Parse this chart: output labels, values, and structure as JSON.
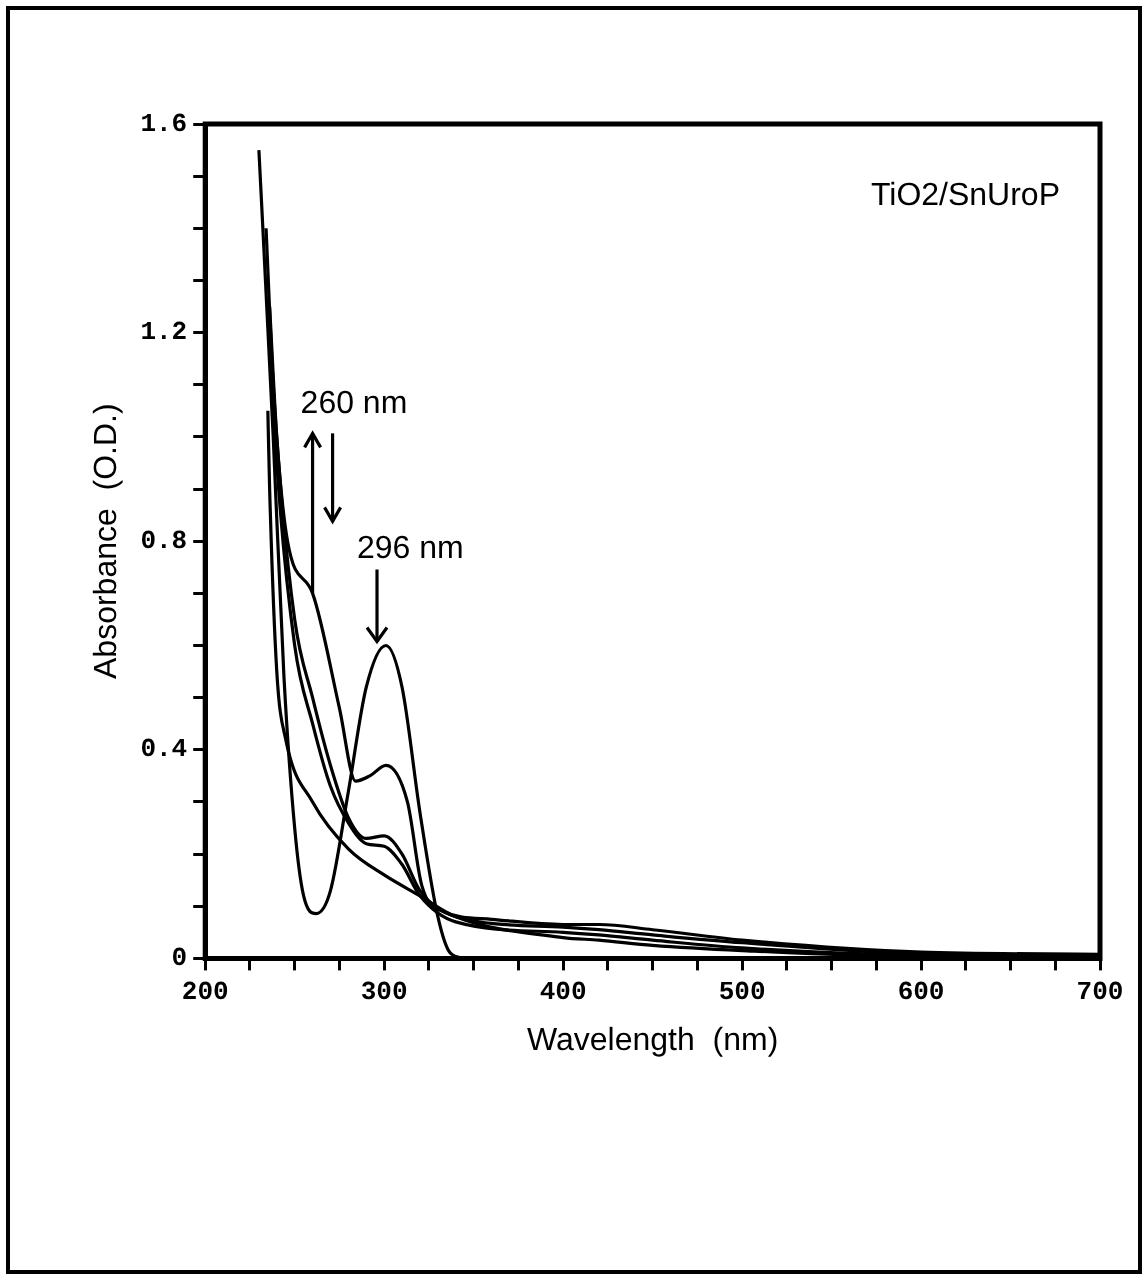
{
  "chart_data": {
    "type": "line",
    "xlabel": "Wavelength  (nm)",
    "ylabel": "Absorbance  (O.D.)",
    "xlim": [
      200,
      700
    ],
    "xticks": [
      200,
      {
        "value": 225,
        "label": null
      },
      {
        "value": 250,
        "label": null
      },
      {
        "value": 275,
        "label": null
      },
      300,
      {
        "value": 325,
        "label": null
      },
      {
        "value": 350,
        "label": null
      },
      {
        "value": 375,
        "label": null
      },
      400,
      {
        "value": 425,
        "label": null
      },
      {
        "value": 450,
        "label": null
      },
      {
        "value": 475,
        "label": null
      },
      500,
      {
        "value": 525,
        "label": null
      },
      {
        "value": 550,
        "label": null
      },
      {
        "value": 575,
        "label": null
      },
      600,
      {
        "value": 625,
        "label": null
      },
      {
        "value": 650,
        "label": null
      },
      {
        "value": 675,
        "label": null
      },
      700
    ],
    "ylim": [
      0,
      1.6
    ],
    "yticks": [
      0,
      {
        "value": 0.1,
        "label": null
      },
      {
        "value": 0.2,
        "label": null
      },
      {
        "value": 0.3,
        "label": null
      },
      {
        "value": 0.4,
        "label": "0.4"
      },
      {
        "value": 0.5,
        "label": null
      },
      {
        "value": 0.6,
        "label": null
      },
      {
        "value": 0.7,
        "label": null
      },
      {
        "value": 0.8,
        "label": "0.8"
      },
      {
        "value": 0.9,
        "label": null
      },
      {
        "value": 1.0,
        "label": null
      },
      {
        "value": 1.1,
        "label": null
      },
      {
        "value": 1.2,
        "label": "1.2"
      },
      {
        "value": 1.3,
        "label": null
      },
      {
        "value": 1.4,
        "label": null
      },
      {
        "value": 1.5,
        "label": null
      },
      {
        "value": 1.6,
        "label": "1.6"
      }
    ],
    "grid": false,
    "legend": false,
    "marker": "none",
    "line_style": "solid",
    "annotations": [
      "TiO2/SnUroP",
      {
        "text": "260 nm",
        "x": 260,
        "y": 0.7
      },
      {
        "text": "296 nm",
        "x": 296,
        "y": 0.6
      }
    ],
    "series": [
      {
        "color": "#000000",
        "x": [
          230,
          238,
          244,
          250,
          255,
          262,
          270,
          280,
          290,
          301,
          310,
          320,
          330,
          337,
          345
        ],
        "values": [
          1.55,
          1.0,
          0.54,
          0.25,
          0.12,
          0.086,
          0.13,
          0.32,
          0.52,
          0.6,
          0.52,
          0.28,
          0.08,
          0.01,
          0
        ]
      },
      {
        "color": "#000000",
        "x": [
          234,
          238,
          246,
          260,
          275,
          284,
          292,
          301,
          313,
          321,
          333,
          360,
          400,
          420,
          450,
          500,
          600,
          700
        ],
        "values": [
          1.4,
          1.1,
          0.8,
          0.7,
          0.48,
          0.34,
          0.35,
          0.37,
          0.3,
          0.14,
          0.09,
          0.075,
          0.065,
          0.065,
          0.055,
          0.035,
          0.012,
          0.008
        ]
      },
      {
        "color": "#000000",
        "x": [
          236,
          240,
          250,
          260,
          270,
          280,
          290,
          300,
          310,
          320,
          340,
          400,
          420,
          450,
          500,
          600,
          700
        ],
        "values": [
          1.25,
          1.0,
          0.65,
          0.5,
          0.37,
          0.27,
          0.23,
          0.235,
          0.2,
          0.13,
          0.08,
          0.06,
          0.055,
          0.045,
          0.03,
          0.009,
          0.006
        ]
      },
      {
        "color": "#000000",
        "x": [
          237,
          240,
          250,
          260,
          270,
          280,
          290,
          300,
          310,
          320,
          340,
          400,
          420,
          450,
          500,
          600,
          700
        ],
        "values": [
          1.15,
          0.95,
          0.6,
          0.45,
          0.33,
          0.26,
          0.22,
          0.215,
          0.18,
          0.12,
          0.07,
          0.05,
          0.045,
          0.035,
          0.02,
          0.006,
          0.004
        ]
      },
      {
        "color": "#000000",
        "x": [
          235,
          236,
          240,
          245,
          260,
          280,
          300,
          320,
          340,
          400,
          420,
          450,
          500,
          600,
          700
        ],
        "values": [
          1.05,
          0.9,
          0.55,
          0.42,
          0.3,
          0.21,
          0.16,
          0.12,
          0.08,
          0.04,
          0.035,
          0.025,
          0.015,
          0.003,
          0.002
        ]
      }
    ]
  }
}
